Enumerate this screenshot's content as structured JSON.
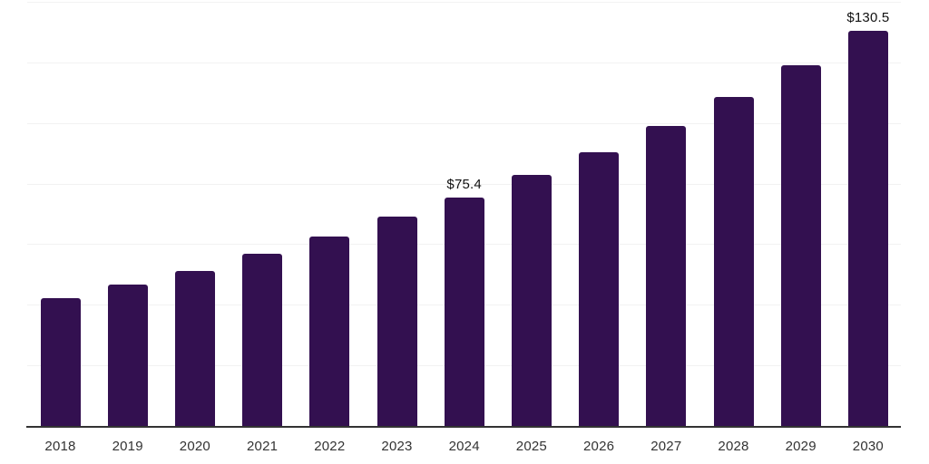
{
  "chart_data": {
    "type": "bar",
    "title": "",
    "xlabel": "",
    "ylabel": "",
    "categories": [
      "2018",
      "2019",
      "2020",
      "2021",
      "2022",
      "2023",
      "2024",
      "2025",
      "2026",
      "2027",
      "2028",
      "2029",
      "2030"
    ],
    "values": [
      42.3,
      46.6,
      51.2,
      56.8,
      62.5,
      69.2,
      75.4,
      82.8,
      90.4,
      99.0,
      108.6,
      119.0,
      130.5
    ],
    "point_labels": [
      "",
      "",
      "",
      "",
      "",
      "",
      "$75.4",
      "",
      "",
      "",
      "",
      "",
      "$130.5"
    ],
    "ylim": [
      0,
      140
    ],
    "gridline_step": 20,
    "grid": true,
    "y_axis_labels_shown": false,
    "legend": "none",
    "colors": {
      "bar": "#331050",
      "axis_line": "#333333",
      "gridline": "#f2f2f2",
      "tick_label": "#333333",
      "value_label": "#111111",
      "background": "#ffffff"
    }
  }
}
